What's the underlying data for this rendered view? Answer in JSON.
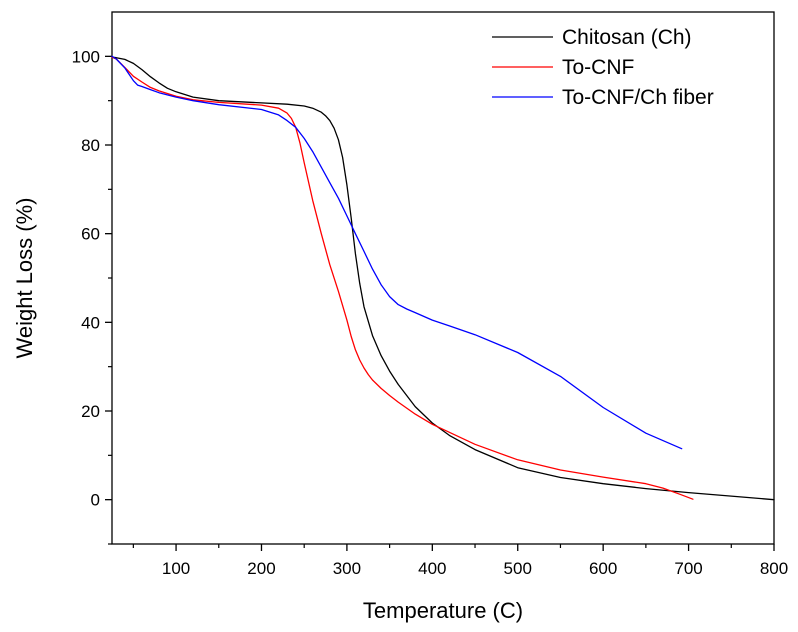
{
  "chart_data": {
    "type": "line",
    "title": "",
    "xlabel": "Temperature (C)",
    "ylabel": "Weight Loss (%)",
    "xlim": [
      25,
      800
    ],
    "ylim": [
      -10,
      110
    ],
    "x_ticks": [
      100,
      200,
      300,
      400,
      500,
      600,
      700,
      800
    ],
    "y_ticks": [
      0,
      20,
      40,
      60,
      80,
      100
    ],
    "grid": false,
    "legend_position": "top-right",
    "series": [
      {
        "name": "Chitosan (Ch)",
        "color": "#000000",
        "x": [
          25,
          30,
          40,
          50,
          60,
          70,
          80,
          90,
          100,
          120,
          150,
          200,
          230,
          250,
          260,
          270,
          275,
          280,
          285,
          290,
          295,
          300,
          305,
          310,
          315,
          320,
          330,
          340,
          350,
          360,
          380,
          400,
          420,
          450,
          500,
          550,
          600,
          650,
          700,
          750,
          800
        ],
        "y": [
          99.8,
          99.7,
          99.3,
          98.4,
          97,
          95.4,
          94,
          92.8,
          92,
          90.8,
          90,
          89.5,
          89.2,
          88.8,
          88.3,
          87.4,
          86.6,
          85.5,
          83.8,
          81.2,
          77.2,
          71,
          63.5,
          55.5,
          48.8,
          43.5,
          37,
          32.5,
          29,
          26,
          21,
          17.3,
          14.5,
          11.3,
          7.2,
          5,
          3.6,
          2.5,
          1.6,
          0.8,
          0
        ]
      },
      {
        "name": "To-CNF",
        "color": "#ff0000",
        "x": [
          25,
          30,
          40,
          50,
          60,
          70,
          80,
          100,
          120,
          150,
          200,
          220,
          230,
          235,
          240,
          245,
          250,
          260,
          270,
          280,
          290,
          300,
          305,
          310,
          315,
          320,
          325,
          330,
          340,
          350,
          360,
          380,
          400,
          450,
          500,
          550,
          600,
          650,
          670,
          690,
          705
        ],
        "y": [
          99.8,
          99.4,
          97.5,
          95.5,
          94.2,
          93,
          92.2,
          91,
          90.2,
          89.6,
          89,
          88.3,
          87.2,
          86,
          84,
          80.5,
          76,
          67.5,
          60,
          53,
          47,
          40.5,
          36.8,
          33.8,
          31.5,
          29.7,
          28.2,
          27,
          25.1,
          23.5,
          22,
          19.3,
          17,
          12.5,
          9,
          6.7,
          5.1,
          3.6,
          2.6,
          1.2,
          0.1
        ]
      },
      {
        "name": "To-CNF/Ch fiber",
        "color": "#0000ff",
        "x": [
          25,
          30,
          40,
          50,
          55,
          60,
          70,
          80,
          100,
          120,
          150,
          200,
          220,
          230,
          240,
          250,
          260,
          270,
          280,
          290,
          300,
          310,
          320,
          330,
          340,
          350,
          360,
          370,
          380,
          400,
          420,
          450,
          500,
          550,
          600,
          650,
          692
        ],
        "y": [
          100,
          99.4,
          97.4,
          94.5,
          93.5,
          93.2,
          92.5,
          91.8,
          90.8,
          90,
          89.1,
          88,
          86.8,
          85.5,
          84,
          81.5,
          78.5,
          75,
          71.5,
          68,
          64,
          60,
          56,
          52,
          48.5,
          45.8,
          44,
          43,
          42.2,
          40.5,
          39.2,
          37.2,
          33.2,
          27.8,
          20.8,
          15,
          11.5
        ]
      }
    ]
  }
}
